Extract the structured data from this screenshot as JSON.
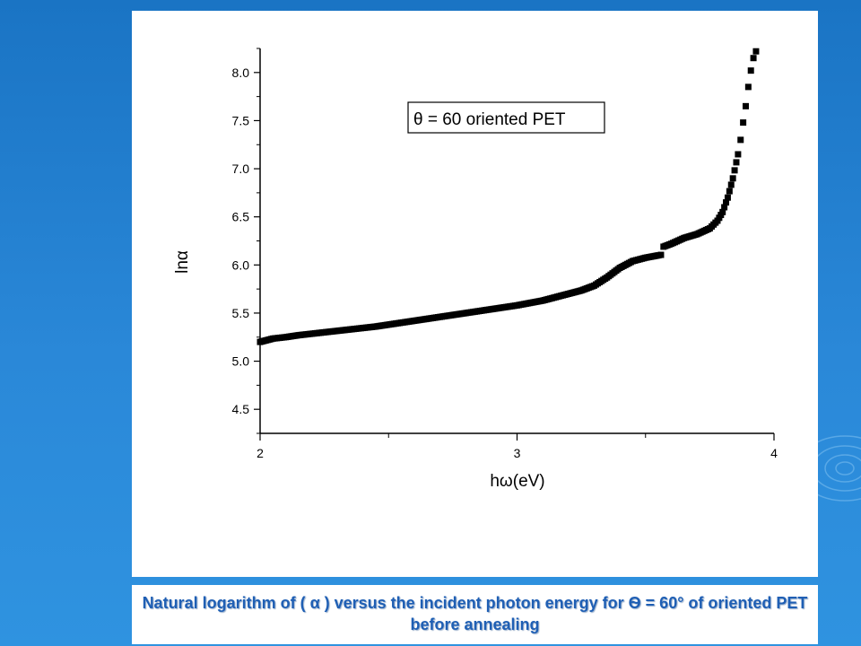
{
  "caption": "Natural logarithm of ( α ) versus the incident photon energy for Ѳ = 60° of oriented PET before annealing",
  "colors": {
    "background": "#2a88d8",
    "caption_text": "#1f5fb4",
    "markers": "#000000"
  },
  "chart_data": {
    "type": "scatter",
    "title": "",
    "xlabel": "hω(eV)",
    "ylabel": "lnα",
    "xlim": [
      2,
      4
    ],
    "ylim": [
      4.25,
      8.25
    ],
    "xticks": [
      "2",
      "3",
      "4"
    ],
    "yticks": [
      "4.5",
      "5.0",
      "5.5",
      "6.0",
      "6.5",
      "7.0",
      "7.5",
      "8.0"
    ],
    "legend": {
      "text": "θ = 60 oriented PET",
      "position": "top-center"
    },
    "grid": false,
    "marker": "square",
    "series": [
      {
        "name": "θ = 60 oriented PET",
        "points": [
          [
            2.0,
            5.2
          ],
          [
            2.05,
            5.235
          ],
          [
            2.1,
            5.25
          ],
          [
            2.15,
            5.27
          ],
          [
            2.2,
            5.285
          ],
          [
            2.25,
            5.3
          ],
          [
            2.3,
            5.315
          ],
          [
            2.35,
            5.33
          ],
          [
            2.4,
            5.345
          ],
          [
            2.45,
            5.36
          ],
          [
            2.5,
            5.38
          ],
          [
            2.55,
            5.4
          ],
          [
            2.6,
            5.42
          ],
          [
            2.65,
            5.44
          ],
          [
            2.7,
            5.46
          ],
          [
            2.75,
            5.48
          ],
          [
            2.8,
            5.5
          ],
          [
            2.85,
            5.52
          ],
          [
            2.9,
            5.54
          ],
          [
            2.95,
            5.56
          ],
          [
            3.0,
            5.58
          ],
          [
            3.05,
            5.605
          ],
          [
            3.1,
            5.63
          ],
          [
            3.15,
            5.665
          ],
          [
            3.2,
            5.7
          ],
          [
            3.25,
            5.735
          ],
          [
            3.3,
            5.785
          ],
          [
            3.35,
            5.87
          ],
          [
            3.4,
            5.97
          ],
          [
            3.45,
            6.04
          ],
          [
            3.5,
            6.075
          ],
          [
            3.55,
            6.1
          ],
          [
            3.56,
            6.105
          ],
          [
            3.57,
            6.19
          ],
          [
            3.6,
            6.22
          ],
          [
            3.65,
            6.28
          ],
          [
            3.7,
            6.32
          ],
          [
            3.75,
            6.38
          ],
          [
            3.78,
            6.46
          ],
          [
            3.8,
            6.55
          ],
          [
            3.82,
            6.7
          ],
          [
            3.84,
            6.9
          ],
          [
            3.86,
            7.15
          ],
          [
            3.87,
            7.3
          ],
          [
            3.88,
            7.48
          ],
          [
            3.89,
            7.65
          ],
          [
            3.9,
            7.85
          ],
          [
            3.91,
            8.02
          ],
          [
            3.92,
            8.15
          ],
          [
            3.93,
            8.22
          ]
        ]
      }
    ]
  }
}
